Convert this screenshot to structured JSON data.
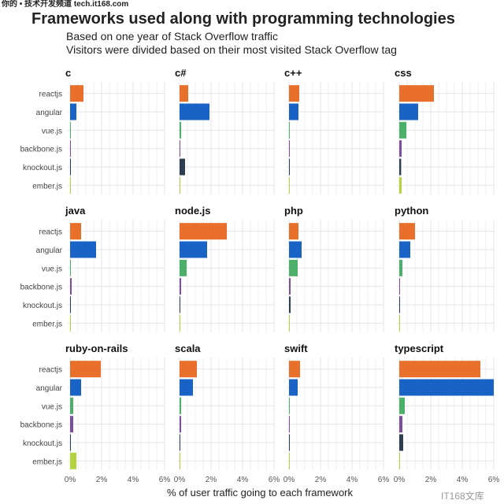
{
  "watermark_top": "你的 • 技术开发频道 tech.it168.com",
  "watermark_bottom": "IT168文库",
  "chart_data": {
    "type": "bar",
    "title": "Frameworks used along with programming technologies",
    "subtitle": [
      "Based on one year of Stack Overflow traffic",
      "Visitors were divided based on their most visited Stack Overflow tag"
    ],
    "xlabel": "% of user traffic going to each framework",
    "ylabel": "",
    "xlim": [
      0,
      6
    ],
    "xticks": [
      "0%",
      "2%",
      "4%",
      "6%"
    ],
    "grid": true,
    "categories": [
      "reactjs",
      "angular",
      "vue.js",
      "backbone.js",
      "knockout.js",
      "ember.js"
    ],
    "colors": [
      "#e8702a",
      "#1a63c6",
      "#4caf6a",
      "#7b4f9e",
      "#2c3e50",
      "#b5d33d"
    ],
    "panels": [
      {
        "name": "c",
        "values": [
          0.85,
          0.4,
          0.05,
          0.02,
          0.02,
          0.02
        ]
      },
      {
        "name": "c#",
        "values": [
          0.55,
          1.9,
          0.1,
          0.05,
          0.35,
          0.02
        ]
      },
      {
        "name": "c++",
        "values": [
          0.65,
          0.6,
          0.05,
          0.02,
          0.05,
          0.02
        ]
      },
      {
        "name": "css",
        "values": [
          2.2,
          1.2,
          0.45,
          0.15,
          0.12,
          0.15
        ]
      },
      {
        "name": "java",
        "values": [
          0.7,
          1.65,
          0.05,
          0.1,
          0.05,
          0.05
        ]
      },
      {
        "name": "node.js",
        "values": [
          3.0,
          1.75,
          0.45,
          0.1,
          0.05,
          0.05
        ]
      },
      {
        "name": "php",
        "values": [
          0.6,
          0.8,
          0.55,
          0.1,
          0.1,
          0.05
        ]
      },
      {
        "name": "python",
        "values": [
          1.0,
          0.7,
          0.2,
          0.05,
          0.05,
          0.05
        ]
      },
      {
        "name": "ruby-on-rails",
        "values": [
          1.95,
          0.7,
          0.2,
          0.2,
          0.05,
          0.4
        ]
      },
      {
        "name": "scala",
        "values": [
          1.1,
          0.85,
          0.1,
          0.1,
          0.05,
          0.02
        ]
      },
      {
        "name": "swift",
        "values": [
          0.7,
          0.55,
          0.05,
          0.05,
          0.05,
          0.02
        ]
      },
      {
        "name": "typescript",
        "values": [
          5.15,
          6.0,
          0.35,
          0.2,
          0.25,
          0.05
        ]
      }
    ]
  }
}
